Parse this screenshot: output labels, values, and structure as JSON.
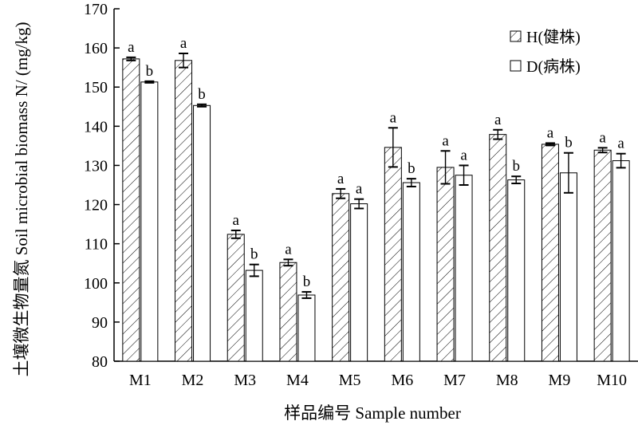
{
  "chart_data": {
    "type": "bar",
    "ylabel": "土壤微生物量氮 Soil microbial biomass N/ (mg/kg)",
    "xlabel": "样品编号 Sample number",
    "ylim": [
      80,
      170
    ],
    "yticks": [
      80,
      90,
      100,
      110,
      120,
      130,
      140,
      150,
      160,
      170
    ],
    "categories": [
      "M1",
      "M2",
      "M3",
      "M4",
      "M5",
      "M6",
      "M7",
      "M8",
      "M9",
      "M10"
    ],
    "legend_position": "top-right",
    "series": [
      {
        "name": "H(健株)",
        "pattern": "hatched",
        "values": [
          157.2,
          156.8,
          112.4,
          105.2,
          122.8,
          134.6,
          129.5,
          137.9,
          135.4,
          133.9
        ],
        "errors": [
          0.4,
          1.8,
          1.0,
          0.8,
          1.2,
          5.0,
          4.2,
          1.2,
          0.3,
          0.6
        ],
        "sig": [
          "a",
          "a",
          "a",
          "a",
          "a",
          "a",
          "a",
          "a",
          "a",
          "a"
        ]
      },
      {
        "name": "D(病株)",
        "pattern": "open",
        "values": [
          151.3,
          145.3,
          103.2,
          96.9,
          120.2,
          125.6,
          127.5,
          126.3,
          128.1,
          131.2
        ],
        "errors": [
          0.2,
          0.3,
          1.5,
          0.8,
          1.2,
          1.0,
          2.5,
          0.9,
          5.1,
          1.8
        ],
        "sig": [
          "b",
          "b",
          "b",
          "b",
          "a",
          "b",
          "a",
          "b",
          "b",
          "a"
        ]
      }
    ]
  }
}
